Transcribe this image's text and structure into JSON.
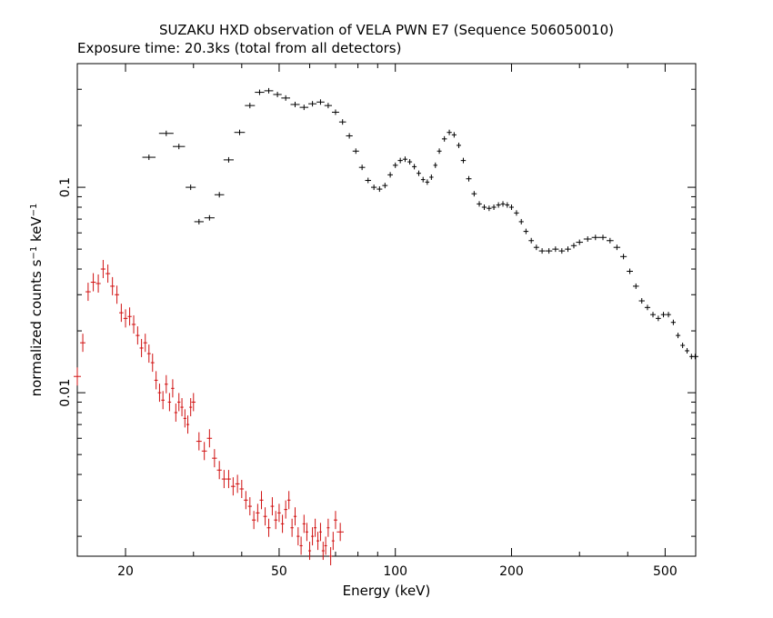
{
  "chart_data": {
    "type": "scatter",
    "title": "SUZAKU HXD observation of VELA PWN E7 (Sequence 506050010)",
    "subtitle": "Exposure time: 20.3ks (total from all detectors)",
    "xlabel": "Energy (keV)",
    "ylabel": {
      "main": "normalized counts s",
      "sup1": "−1",
      "mid": " keV",
      "sup2": "−1"
    },
    "x_scale": "log",
    "y_scale": "log",
    "xlim": [
      15,
      600
    ],
    "ylim": [
      0.0016,
      0.4
    ],
    "grid": false,
    "x_tick_labels": [
      {
        "value": 20,
        "label": "20"
      },
      {
        "value": 50,
        "label": "50"
      },
      {
        "value": 100,
        "label": "100"
      },
      {
        "value": 200,
        "label": "200"
      },
      {
        "value": 500,
        "label": "500"
      }
    ],
    "y_tick_labels": [
      {
        "value": 0.1,
        "label": "0.1"
      },
      {
        "value": 0.01,
        "label": "0.01"
      }
    ],
    "colors": {
      "series_1": "#000000",
      "series_2": "#d01010"
    },
    "series": [
      {
        "color": "#000000",
        "points": [
          [
            23.0,
            0.14
          ],
          [
            25.5,
            0.183
          ],
          [
            27.5,
            0.158
          ],
          [
            29.5,
            0.1
          ],
          [
            31.0,
            0.068
          ],
          [
            33.0,
            0.071
          ],
          [
            35.0,
            0.092
          ],
          [
            37.0,
            0.136
          ],
          [
            39.5,
            0.185
          ],
          [
            42.0,
            0.25
          ],
          [
            44.5,
            0.29
          ],
          [
            47.0,
            0.295
          ],
          [
            49.5,
            0.283
          ],
          [
            52.0,
            0.272
          ],
          [
            55.0,
            0.253
          ],
          [
            58.0,
            0.245
          ],
          [
            61.0,
            0.255
          ],
          [
            64.0,
            0.26
          ],
          [
            67.0,
            0.25
          ],
          [
            70.0,
            0.232
          ],
          [
            73.0,
            0.208
          ],
          [
            76.0,
            0.178
          ],
          [
            79.0,
            0.15
          ],
          [
            82.0,
            0.125
          ],
          [
            85.0,
            0.108
          ],
          [
            88.0,
            0.1
          ],
          [
            91.0,
            0.098
          ],
          [
            94.0,
            0.102
          ],
          [
            97.0,
            0.115
          ],
          [
            100.0,
            0.128
          ],
          [
            103.0,
            0.135
          ],
          [
            106.0,
            0.137
          ],
          [
            109.0,
            0.133
          ],
          [
            112.0,
            0.126
          ],
          [
            115.0,
            0.117
          ],
          [
            118.0,
            0.109
          ],
          [
            121.0,
            0.106
          ],
          [
            124.0,
            0.112
          ],
          [
            127.0,
            0.128
          ],
          [
            130.0,
            0.15
          ],
          [
            134.0,
            0.172
          ],
          [
            138.0,
            0.185
          ],
          [
            142.0,
            0.18
          ],
          [
            146.0,
            0.16
          ],
          [
            150.0,
            0.135
          ],
          [
            155.0,
            0.11
          ],
          [
            160.0,
            0.093
          ],
          [
            165.0,
            0.083
          ],
          [
            170.0,
            0.08
          ],
          [
            175.0,
            0.079
          ],
          [
            180.0,
            0.08
          ],
          [
            185.0,
            0.082
          ],
          [
            190.0,
            0.083
          ],
          [
            195.0,
            0.082
          ],
          [
            200.0,
            0.08
          ],
          [
            206.0,
            0.075
          ],
          [
            212.0,
            0.068
          ],
          [
            218.0,
            0.061
          ],
          [
            225.0,
            0.055
          ],
          [
            232.0,
            0.051
          ],
          [
            240.0,
            0.049
          ],
          [
            250.0,
            0.049
          ],
          [
            260.0,
            0.05
          ],
          [
            270.0,
            0.049
          ],
          [
            280.0,
            0.05
          ],
          [
            290.0,
            0.052
          ],
          [
            300.0,
            0.054
          ],
          [
            315.0,
            0.056
          ],
          [
            330.0,
            0.057
          ],
          [
            345.0,
            0.057
          ],
          [
            360.0,
            0.055
          ],
          [
            375.0,
            0.051
          ],
          [
            390.0,
            0.046
          ],
          [
            405.0,
            0.039
          ],
          [
            420.0,
            0.033
          ],
          [
            435.0,
            0.028
          ],
          [
            450.0,
            0.026
          ],
          [
            465.0,
            0.024
          ],
          [
            480.0,
            0.023
          ],
          [
            495.0,
            0.024
          ],
          [
            510.0,
            0.024
          ],
          [
            525.0,
            0.022
          ],
          [
            540.0,
            0.019
          ],
          [
            555.0,
            0.017
          ],
          [
            570.0,
            0.016
          ],
          [
            585.0,
            0.015
          ],
          [
            598.0,
            0.015
          ]
        ]
      },
      {
        "color": "#d01010",
        "points": [
          [
            15.0,
            0.012
          ],
          [
            15.5,
            0.0175
          ],
          [
            16.0,
            0.031
          ],
          [
            16.5,
            0.0345
          ],
          [
            17.0,
            0.034
          ],
          [
            17.5,
            0.04
          ],
          [
            18.0,
            0.038
          ],
          [
            18.5,
            0.033
          ],
          [
            19.0,
            0.03
          ],
          [
            19.5,
            0.0245
          ],
          [
            20.0,
            0.023
          ],
          [
            20.5,
            0.0235
          ],
          [
            21.0,
            0.0215
          ],
          [
            21.5,
            0.019
          ],
          [
            22.0,
            0.0165
          ],
          [
            22.5,
            0.0175
          ],
          [
            23.0,
            0.0155
          ],
          [
            23.5,
            0.014
          ],
          [
            24.0,
            0.0115
          ],
          [
            24.5,
            0.01
          ],
          [
            25.0,
            0.0092
          ],
          [
            25.5,
            0.011
          ],
          [
            26.0,
            0.009
          ],
          [
            26.5,
            0.0105
          ],
          [
            27.0,
            0.008
          ],
          [
            27.5,
            0.009
          ],
          [
            28.0,
            0.0085
          ],
          [
            28.5,
            0.0075
          ],
          [
            29.0,
            0.007
          ],
          [
            29.5,
            0.0085
          ],
          [
            30.0,
            0.009
          ],
          [
            31.0,
            0.0058
          ],
          [
            32.0,
            0.0052
          ],
          [
            33.0,
            0.006
          ],
          [
            34.0,
            0.0048
          ],
          [
            35.0,
            0.0042
          ],
          [
            36.0,
            0.0038
          ],
          [
            37.0,
            0.0038
          ],
          [
            38.0,
            0.0035
          ],
          [
            39.0,
            0.0036
          ],
          [
            40.0,
            0.0034
          ],
          [
            41.0,
            0.003
          ],
          [
            42.0,
            0.0028
          ],
          [
            43.0,
            0.0024
          ],
          [
            44.0,
            0.0026
          ],
          [
            45.0,
            0.003
          ],
          [
            46.0,
            0.0025
          ],
          [
            47.0,
            0.0022
          ],
          [
            48.0,
            0.0028
          ],
          [
            49.0,
            0.0024
          ],
          [
            50.0,
            0.0026
          ],
          [
            51.0,
            0.0023
          ],
          [
            52.0,
            0.0027
          ],
          [
            53.0,
            0.003
          ],
          [
            54.0,
            0.0022
          ],
          [
            55.0,
            0.0025
          ],
          [
            56.0,
            0.002
          ],
          [
            57.0,
            0.0018
          ],
          [
            58.0,
            0.0023
          ],
          [
            59.0,
            0.0021
          ],
          [
            60.0,
            0.0017
          ],
          [
            61.0,
            0.002
          ],
          [
            62.0,
            0.0022
          ],
          [
            63.0,
            0.0019
          ],
          [
            64.0,
            0.0021
          ],
          [
            65.0,
            0.0017
          ],
          [
            66.0,
            0.0018
          ],
          [
            67.0,
            0.0022
          ],
          [
            68.0,
            0.0016
          ],
          [
            69.0,
            0.0019
          ],
          [
            70.0,
            0.0024
          ],
          [
            72.0,
            0.0021
          ]
        ]
      }
    ]
  }
}
